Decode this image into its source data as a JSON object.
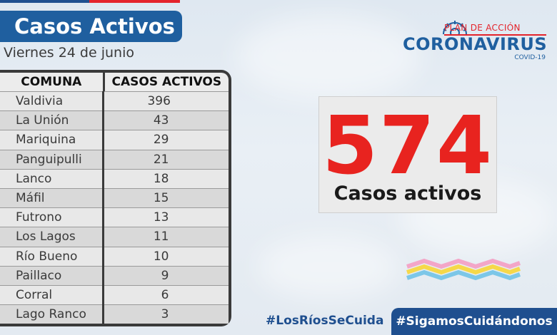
{
  "header": {
    "title": "Casos Activos",
    "date": "Viernes 24 de junio"
  },
  "logo": {
    "plan": "PLAN DE ACCIÓN",
    "name": "CORONAVIRUS",
    "sub": "COVID-19"
  },
  "table": {
    "col1": "COMUNA",
    "col2": "CASOS ACTIVOS",
    "rows": [
      {
        "comuna": "Valdivia",
        "casos": "396"
      },
      {
        "comuna": "La Unión",
        "casos": "43"
      },
      {
        "comuna": "Mariquina",
        "casos": "29"
      },
      {
        "comuna": "Panguipulli",
        "casos": "21"
      },
      {
        "comuna": "Lanco",
        "casos": "18"
      },
      {
        "comuna": "Máfil",
        "casos": "15"
      },
      {
        "comuna": "Futrono",
        "casos": "13"
      },
      {
        "comuna": "Los Lagos",
        "casos": "11"
      },
      {
        "comuna": "Río Bueno",
        "casos": "10"
      },
      {
        "comuna": "Paillaco",
        "casos": "9"
      },
      {
        "comuna": "Corral",
        "casos": "6"
      },
      {
        "comuna": "Lago Ranco",
        "casos": "3"
      }
    ]
  },
  "total": {
    "number": "574",
    "label": "Casos activos"
  },
  "hashtags": {
    "left": "#LosRíosSeCuida",
    "right": "#SigamosCuidándonos"
  },
  "colors": {
    "blue": "#1f5f9f",
    "red": "#e8231f"
  }
}
